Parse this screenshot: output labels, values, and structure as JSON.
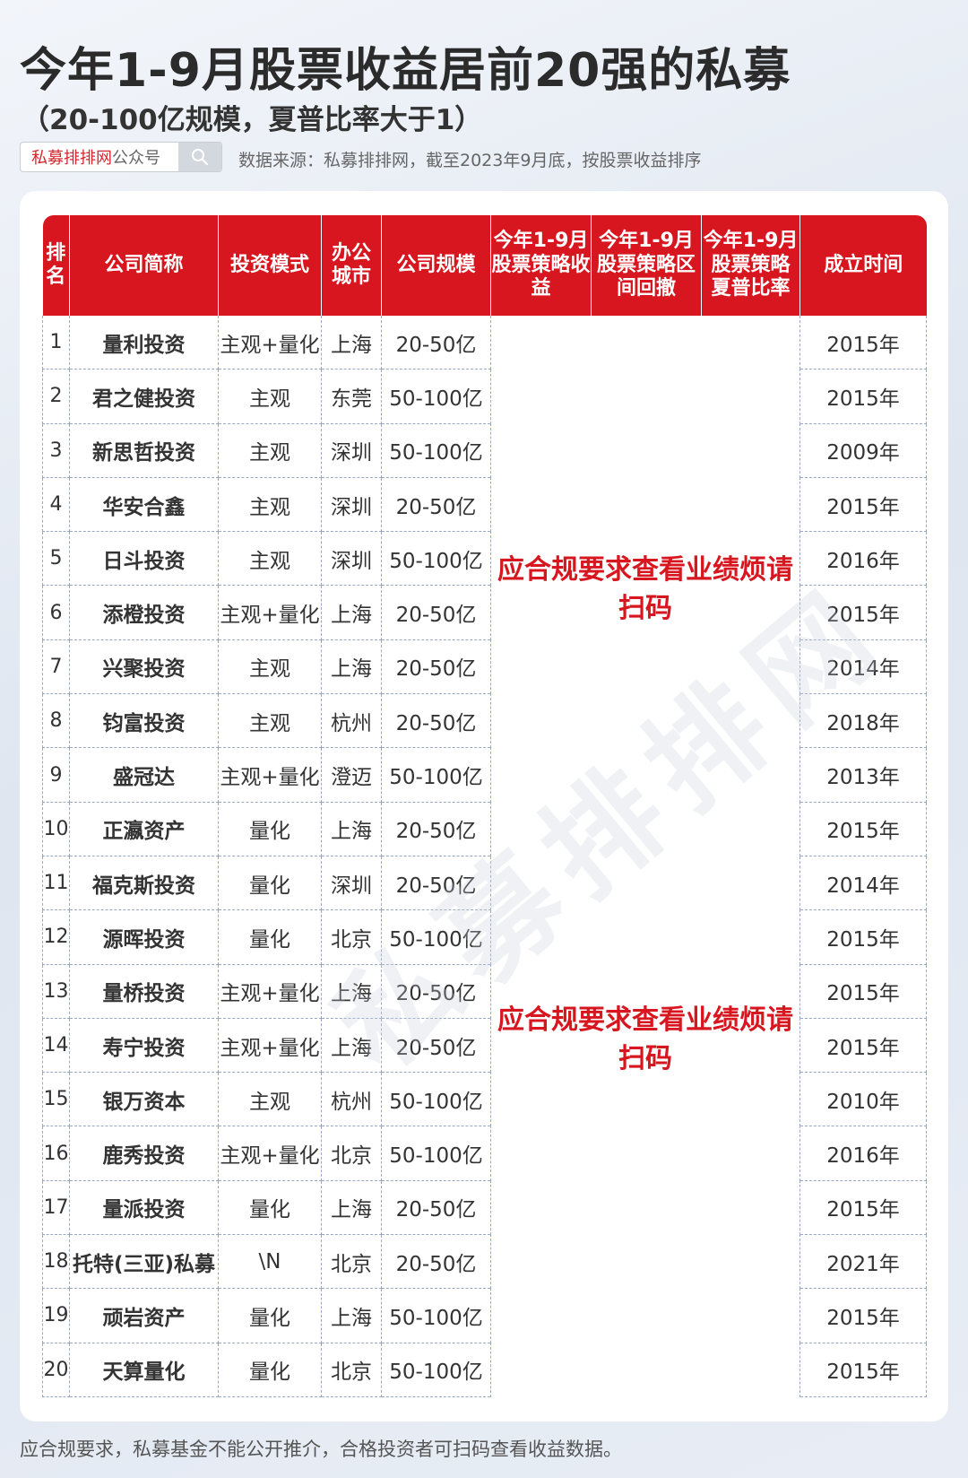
{
  "title": "今年1-9月股票收益居前20强的私募",
  "subtitle": "（20-100亿规模，夏普比率大于1）",
  "search": {
    "brand": "私募排排网",
    "suffix": "公众号"
  },
  "source_note": "数据来源：私募排排网，截至2023年9月底，按股票收益排序",
  "headers": {
    "rank": "排名",
    "name": "公司简称",
    "mode": "投资模式",
    "city": "办公城市",
    "scale": "公司规模",
    "ret": "今年1-9月股票策略收益",
    "dd": "今年1-9月股票策略区间回撤",
    "sharpe": "今年1-9月股票策略夏普比率",
    "founded": "成立时间"
  },
  "notice": "应合规要求查看业绩烦请扫码",
  "watermark": "私募排排网",
  "rows": [
    {
      "rank": "1",
      "name": "量利投资",
      "mode": "主观+量化",
      "city": "上海",
      "scale": "20-50亿",
      "founded": "2015年"
    },
    {
      "rank": "2",
      "name": "君之健投资",
      "mode": "主观",
      "city": "东莞",
      "scale": "50-100亿",
      "founded": "2015年"
    },
    {
      "rank": "3",
      "name": "新思哲投资",
      "mode": "主观",
      "city": "深圳",
      "scale": "50-100亿",
      "founded": "2009年"
    },
    {
      "rank": "4",
      "name": "华安合鑫",
      "mode": "主观",
      "city": "深圳",
      "scale": "20-50亿",
      "founded": "2015年"
    },
    {
      "rank": "5",
      "name": "日斗投资",
      "mode": "主观",
      "city": "深圳",
      "scale": "50-100亿",
      "founded": "2016年"
    },
    {
      "rank": "6",
      "name": "添橙投资",
      "mode": "主观+量化",
      "city": "上海",
      "scale": "20-50亿",
      "founded": "2015年"
    },
    {
      "rank": "7",
      "name": "兴聚投资",
      "mode": "主观",
      "city": "上海",
      "scale": "20-50亿",
      "founded": "2014年"
    },
    {
      "rank": "8",
      "name": "钧富投资",
      "mode": "主观",
      "city": "杭州",
      "scale": "20-50亿",
      "founded": "2018年"
    },
    {
      "rank": "9",
      "name": "盛冠达",
      "mode": "主观+量化",
      "city": "澄迈",
      "scale": "50-100亿",
      "founded": "2013年"
    },
    {
      "rank": "10",
      "name": "正瀛资产",
      "mode": "量化",
      "city": "上海",
      "scale": "20-50亿",
      "founded": "2015年"
    },
    {
      "rank": "11",
      "name": "福克斯投资",
      "mode": "量化",
      "city": "深圳",
      "scale": "20-50亿",
      "founded": "2014年"
    },
    {
      "rank": "12",
      "name": "源晖投资",
      "mode": "量化",
      "city": "北京",
      "scale": "50-100亿",
      "founded": "2015年"
    },
    {
      "rank": "13",
      "name": "量桥投资",
      "mode": "主观+量化",
      "city": "上海",
      "scale": "20-50亿",
      "founded": "2015年"
    },
    {
      "rank": "14",
      "name": "寿宁投资",
      "mode": "主观+量化",
      "city": "上海",
      "scale": "20-50亿",
      "founded": "2015年"
    },
    {
      "rank": "15",
      "name": "银万资本",
      "mode": "主观",
      "city": "杭州",
      "scale": "50-100亿",
      "founded": "2010年"
    },
    {
      "rank": "16",
      "name": "鹿秀投资",
      "mode": "主观+量化",
      "city": "北京",
      "scale": "50-100亿",
      "founded": "2016年"
    },
    {
      "rank": "17",
      "name": "量派投资",
      "mode": "量化",
      "city": "上海",
      "scale": "20-50亿",
      "founded": "2015年"
    },
    {
      "rank": "18",
      "name": "托特(三亚)私募",
      "mode": "\\N",
      "city": "北京",
      "scale": "20-50亿",
      "founded": "2021年"
    },
    {
      "rank": "19",
      "name": "顽岩资产",
      "mode": "量化",
      "city": "上海",
      "scale": "50-100亿",
      "founded": "2015年"
    },
    {
      "rank": "20",
      "name": "天算量化",
      "mode": "量化",
      "city": "北京",
      "scale": "50-100亿",
      "founded": "2015年"
    }
  ],
  "footer": "应合规要求，私募基金不能公开推介，合格投资者可扫码查看收益数据。"
}
